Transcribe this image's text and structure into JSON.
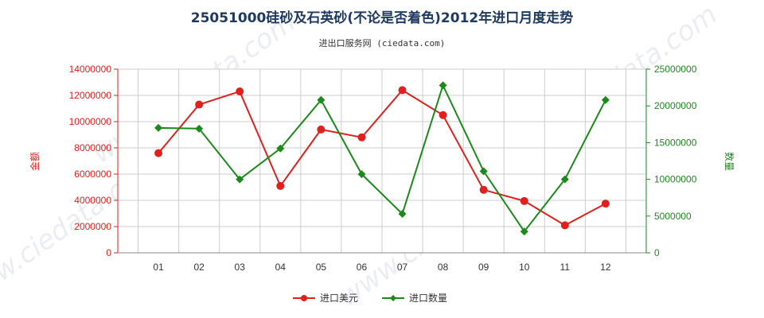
{
  "chart_data": {
    "type": "line",
    "title": "25051000硅砂及石英砂(不论是否着色)2012年进口月度走势",
    "subtitle": "进出口服务网 (ciedata.com)",
    "watermark": "www.ciedata.com",
    "categories": [
      "01",
      "02",
      "03",
      "04",
      "05",
      "06",
      "07",
      "08",
      "09",
      "10",
      "11",
      "12"
    ],
    "y_left": {
      "label": "金额",
      "ylim": [
        0,
        14000000
      ],
      "ticks": [
        0,
        2000000,
        4000000,
        6000000,
        8000000,
        10000000,
        12000000,
        14000000
      ],
      "tick_labels": [
        "0",
        "2000000",
        "4000000",
        "6000000",
        "8000000",
        "10000000",
        "12000000",
        "14000000"
      ]
    },
    "y_right": {
      "label": "数量",
      "ylim": [
        0,
        25000000
      ],
      "ticks": [
        0,
        5000000,
        10000000,
        15000000,
        20000000,
        25000000
      ],
      "tick_labels": [
        "0",
        "5000000",
        "10000000",
        "15000000",
        "20000000",
        "25000000"
      ]
    },
    "series": [
      {
        "name": "进口美元",
        "axis": "left",
        "color": "#e0201c",
        "marker": "circle",
        "values": [
          7600000,
          11300000,
          12300000,
          5100000,
          9400000,
          8800000,
          12400000,
          10500000,
          4800000,
          3950000,
          2100000,
          3750000
        ]
      },
      {
        "name": "进口数量",
        "axis": "right",
        "color": "#1a8a1a",
        "marker": "diamond",
        "values": [
          17000000,
          16900000,
          10000000,
          14200000,
          20800000,
          10700000,
          5300000,
          22800000,
          11100000,
          2900000,
          10000000,
          20800000
        ]
      }
    ],
    "grid": true,
    "legend_position": "bottom-center"
  }
}
